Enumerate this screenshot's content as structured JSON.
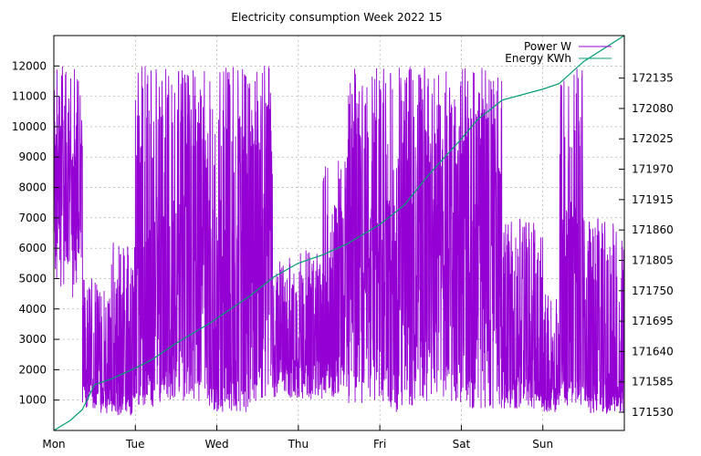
{
  "chart_data": {
    "type": "line",
    "title": "Electricity consumption Week 2022 15",
    "x": {
      "categories": [
        "Mon",
        "Tue",
        "Wed",
        "Thu",
        "Fri",
        "Sat",
        "Sun"
      ],
      "range_days": [
        0,
        7
      ]
    },
    "y_left": {
      "ticks": [
        1000,
        2000,
        3000,
        4000,
        5000,
        6000,
        7000,
        8000,
        9000,
        10000,
        11000,
        12000
      ],
      "range": [
        0,
        13000
      ]
    },
    "y_right": {
      "ticks": [
        171530,
        171585,
        171640,
        171695,
        171750,
        171805,
        171860,
        171915,
        171970,
        172025,
        172080,
        172135
      ],
      "range": [
        171497,
        172212
      ]
    },
    "grid": true,
    "legend_position": "top-right",
    "series": [
      {
        "name": "Power W",
        "axis": "left",
        "color": "#9400d3",
        "kind": "noisy-power",
        "segments": [
          {
            "from": 0.0,
            "to": 0.35,
            "base": 5200,
            "spike": 12000,
            "density": 0.9
          },
          {
            "from": 0.35,
            "to": 0.5,
            "base": 1100,
            "spike": 5200,
            "density": 0.5
          },
          {
            "from": 0.5,
            "to": 0.7,
            "base": 900,
            "spike": 5000,
            "density": 0.6
          },
          {
            "from": 0.7,
            "to": 1.0,
            "base": 800,
            "spike": 6200,
            "density": 0.6
          },
          {
            "from": 1.0,
            "to": 1.25,
            "base": 1300,
            "spike": 12000,
            "density": 0.6
          },
          {
            "from": 1.25,
            "to": 1.5,
            "base": 1500,
            "spike": 12000,
            "density": 0.7
          },
          {
            "from": 1.5,
            "to": 1.9,
            "base": 1500,
            "spike": 12000,
            "density": 0.8
          },
          {
            "from": 1.9,
            "to": 2.1,
            "base": 1000,
            "spike": 12000,
            "density": 0.7
          },
          {
            "from": 2.1,
            "to": 2.4,
            "base": 1000,
            "spike": 12000,
            "density": 0.7
          },
          {
            "from": 2.4,
            "to": 2.7,
            "base": 1500,
            "spike": 12000,
            "density": 0.8
          },
          {
            "from": 2.7,
            "to": 3.3,
            "base": 1700,
            "spike": 6000,
            "density": 0.5
          },
          {
            "from": 3.3,
            "to": 3.6,
            "base": 1800,
            "spike": 9000,
            "density": 0.6
          },
          {
            "from": 3.6,
            "to": 4.1,
            "base": 1300,
            "spike": 12000,
            "density": 0.9
          },
          {
            "from": 4.1,
            "to": 4.4,
            "base": 1000,
            "spike": 12000,
            "density": 0.8
          },
          {
            "from": 4.4,
            "to": 5.0,
            "base": 1500,
            "spike": 12000,
            "density": 0.9
          },
          {
            "from": 5.0,
            "to": 5.5,
            "base": 1200,
            "spike": 12000,
            "density": 0.8
          },
          {
            "from": 5.5,
            "to": 6.0,
            "base": 1200,
            "spike": 7000,
            "density": 0.6
          },
          {
            "from": 6.0,
            "to": 6.2,
            "base": 1000,
            "spike": 4500,
            "density": 0.5
          },
          {
            "from": 6.2,
            "to": 6.5,
            "base": 1200,
            "spike": 12000,
            "density": 0.7
          },
          {
            "from": 6.5,
            "to": 7.0,
            "base": 900,
            "spike": 7000,
            "density": 0.6
          }
        ]
      },
      {
        "name": "Energy KWh",
        "axis": "right",
        "color": "#009e73",
        "points": [
          [
            0.0,
            171497
          ],
          [
            0.2,
            171515
          ],
          [
            0.35,
            171535
          ],
          [
            0.5,
            171580
          ],
          [
            0.7,
            171590
          ],
          [
            1.0,
            171610
          ],
          [
            1.2,
            171625
          ],
          [
            1.5,
            171655
          ],
          [
            1.9,
            171690
          ],
          [
            2.1,
            171710
          ],
          [
            2.4,
            171740
          ],
          [
            2.7,
            171775
          ],
          [
            3.0,
            171800
          ],
          [
            3.3,
            171815
          ],
          [
            3.6,
            171835
          ],
          [
            4.0,
            171870
          ],
          [
            4.3,
            171905
          ],
          [
            4.6,
            171960
          ],
          [
            5.0,
            172025
          ],
          [
            5.2,
            172060
          ],
          [
            5.5,
            172095
          ],
          [
            6.0,
            172115
          ],
          [
            6.2,
            172125
          ],
          [
            6.5,
            172165
          ],
          [
            7.0,
            172212
          ]
        ]
      }
    ]
  }
}
